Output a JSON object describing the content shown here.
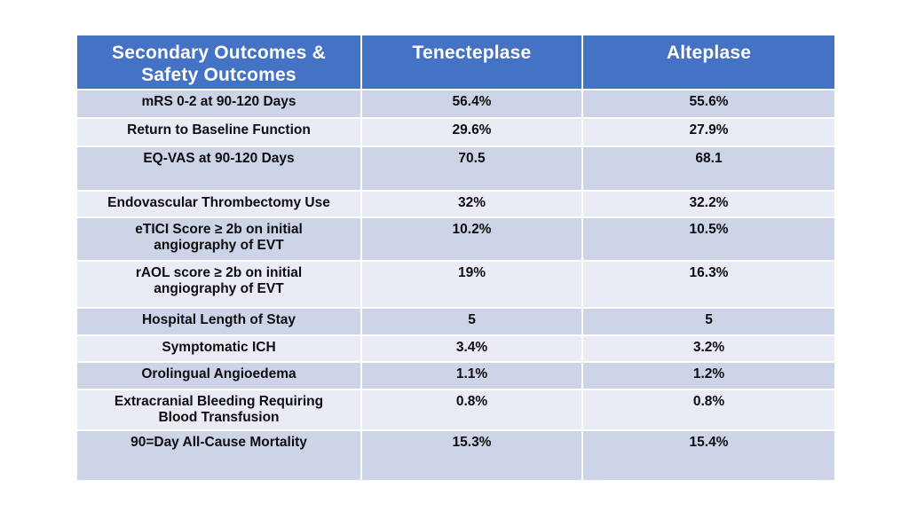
{
  "colors": {
    "header_bg": "#4472C4",
    "row_band_dark": "#CDD4E8",
    "row_band_light": "#E9EBF5",
    "header_text": "#FFFFFF",
    "body_text": "#0E0E10",
    "cell_border": "#FFFFFF",
    "background": "#FFFFFF"
  },
  "table": {
    "header": {
      "col1_line1": "Secondary Outcomes &",
      "col1_line2": "Safety Outcomes",
      "col2": "Tenecteplase",
      "col3": "Alteplase"
    },
    "rows": [
      {
        "label": "mRS 0-2 at 90-120 Days",
        "label2": "",
        "tenecteplase": "56.4%",
        "alteplase": "55.6%"
      },
      {
        "label": "Return to Baseline Function",
        "label2": "",
        "tenecteplase": "29.6%",
        "alteplase": "27.9%"
      },
      {
        "label": "EQ-VAS at 90-120 Days",
        "label2": "",
        "tenecteplase": "70.5",
        "alteplase": "68.1"
      },
      {
        "label": "Endovascular Thrombectomy Use",
        "label2": "",
        "tenecteplase": "32%",
        "alteplase": "32.2%"
      },
      {
        "label": "eTICI Score ≥ 2b on initial",
        "label2": "angiography of EVT",
        "tenecteplase": "10.2%",
        "alteplase": "10.5%"
      },
      {
        "label": "rAOL score ≥ 2b on initial",
        "label2": "angiography of EVT",
        "tenecteplase": "19%",
        "alteplase": "16.3%"
      },
      {
        "label": "Hospital Length of Stay",
        "label2": "",
        "tenecteplase": "5",
        "alteplase": "5"
      },
      {
        "label": "Symptomatic ICH",
        "label2": "",
        "tenecteplase": "3.4%",
        "alteplase": "3.2%"
      },
      {
        "label": "Orolingual Angioedema",
        "label2": "",
        "tenecteplase": "1.1%",
        "alteplase": "1.2%"
      },
      {
        "label": "Extracranial Bleeding Requiring",
        "label2": "Blood Transfusion",
        "tenecteplase": "0.8%",
        "alteplase": "0.8%"
      },
      {
        "label": "90=Day All-Cause Mortality",
        "label2": "",
        "tenecteplase": "15.3%",
        "alteplase": "15.4%"
      }
    ]
  }
}
